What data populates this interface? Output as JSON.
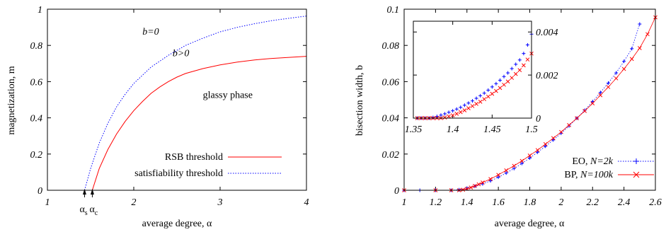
{
  "chart_data": [
    {
      "type": "line",
      "xlabel": "average degree, α",
      "ylabel": "magnetization, m",
      "xlim": [
        1,
        4
      ],
      "ylim": [
        0,
        1
      ],
      "xticks": [
        "1",
        "2",
        "3",
        "4"
      ],
      "yticks": [
        "0",
        "0.2",
        "0.4",
        "0.6",
        "0.8",
        "1"
      ],
      "grid": false,
      "legend": "bottom-right",
      "series": [
        {
          "name": "RSB threshold",
          "color": "#ff0000",
          "style": "solid",
          "x": [
            1.52,
            1.6,
            1.7,
            1.8,
            1.9,
            2.0,
            2.1,
            2.2,
            2.3,
            2.4,
            2.5,
            2.6,
            2.8,
            3.0,
            3.2,
            3.4,
            3.6,
            3.8,
            4.0
          ],
          "y": [
            0.0,
            0.12,
            0.225,
            0.31,
            0.38,
            0.44,
            0.49,
            0.535,
            0.57,
            0.6,
            0.625,
            0.645,
            0.672,
            0.692,
            0.708,
            0.72,
            0.728,
            0.734,
            0.74
          ]
        },
        {
          "name": "satisfiability threshold",
          "color": "#0000ff",
          "style": "dotted",
          "x": [
            1.43,
            1.5,
            1.6,
            1.7,
            1.8,
            1.9,
            2.0,
            2.2,
            2.4,
            2.6,
            2.8,
            3.0,
            3.2,
            3.4,
            3.6,
            3.8,
            4.0
          ],
          "y": [
            0.0,
            0.12,
            0.26,
            0.37,
            0.46,
            0.53,
            0.59,
            0.68,
            0.745,
            0.8,
            0.84,
            0.875,
            0.9,
            0.92,
            0.937,
            0.95,
            0.962
          ]
        }
      ],
      "annotations": [
        {
          "text": "b=0",
          "x": 2.1,
          "y": 0.86
        },
        {
          "text": "b>0",
          "x": 2.45,
          "y": 0.74
        },
        {
          "text": "glassy phase",
          "x": 2.8,
          "y": 0.51
        }
      ],
      "markers": [
        {
          "label_main": "α",
          "label_sub": "s",
          "x": 1.43
        },
        {
          "label_main": "α",
          "label_sub": "c",
          "x": 1.52
        }
      ]
    },
    {
      "type": "scatter",
      "xlabel": "average degree, α",
      "ylabel": "bisection width, b",
      "xlim": [
        1,
        2.6
      ],
      "ylim": [
        0,
        0.1
      ],
      "xticks": [
        "1",
        "1.2",
        "1.4",
        "1.6",
        "1.8",
        "2",
        "2.2",
        "2.4",
        "2.6"
      ],
      "yticks": [
        "0",
        "0.02",
        "0.04",
        "0.06",
        "0.08",
        "0.1"
      ],
      "grid": false,
      "legend": "bottom-right",
      "series": [
        {
          "name_prefix": "EO, ",
          "name_italic": "N=2k",
          "color": "#0000ff",
          "marker": "plus",
          "x": [
            1.0,
            1.1,
            1.2,
            1.3,
            1.35,
            1.4,
            1.45,
            1.5,
            1.55,
            1.6,
            1.65,
            1.7,
            1.75,
            1.8,
            1.85,
            1.9,
            1.95,
            2.0,
            2.05,
            2.1,
            2.15,
            2.2,
            2.25,
            2.3,
            2.35,
            2.4,
            2.45,
            2.5
          ],
          "y": [
            0.0,
            0.0,
            0.0,
            0.0,
            0.0003,
            0.0012,
            0.0022,
            0.0035,
            0.0052,
            0.0072,
            0.0095,
            0.012,
            0.0148,
            0.0178,
            0.021,
            0.0243,
            0.0278,
            0.0315,
            0.0355,
            0.0398,
            0.0442,
            0.049,
            0.054,
            0.0592,
            0.0648,
            0.0712,
            0.0782,
            0.0918
          ]
        },
        {
          "name_prefix": "BP, ",
          "name_italic": "N=100k",
          "color": "#ff0000",
          "marker": "x",
          "x": [
            1.0,
            1.2,
            1.3,
            1.35,
            1.375,
            1.4,
            1.425,
            1.45,
            1.475,
            1.5,
            1.55,
            1.6,
            1.65,
            1.7,
            1.75,
            1.8,
            1.85,
            1.9,
            1.95,
            2.0,
            2.05,
            2.1,
            2.15,
            2.2,
            2.25,
            2.3,
            2.35,
            2.4,
            2.45,
            2.5,
            2.55,
            2.6
          ],
          "y": [
            0.0,
            0.0,
            0.0,
            0.0,
            0.0003,
            0.0008,
            0.0015,
            0.0024,
            0.0033,
            0.0043,
            0.0062,
            0.0085,
            0.011,
            0.0135,
            0.0162,
            0.0192,
            0.0222,
            0.0255,
            0.0288,
            0.0322,
            0.036,
            0.0398,
            0.0438,
            0.048,
            0.0525,
            0.057,
            0.0618,
            0.067,
            0.0725,
            0.0785,
            0.0862,
            0.0955
          ]
        }
      ],
      "inset": {
        "xlim": [
          1.35,
          1.5
        ],
        "ylim": [
          0,
          0.0045
        ],
        "xticks": [
          "1.35",
          "1.4",
          "1.45",
          "1.5"
        ],
        "yticks": [
          "0",
          "0.002",
          "0.004"
        ],
        "series": [
          {
            "color": "#0000ff",
            "marker": "plus",
            "x": [
              1.355,
              1.36,
              1.365,
              1.37,
              1.375,
              1.38,
              1.385,
              1.39,
              1.395,
              1.4,
              1.405,
              1.41,
              1.415,
              1.42,
              1.425,
              1.43,
              1.435,
              1.44,
              1.445,
              1.45,
              1.455,
              1.46,
              1.465,
              1.47,
              1.475,
              1.48,
              1.485,
              1.49,
              1.495,
              1.5
            ],
            "y": [
              0.0,
              0.0,
              0.0,
              0.0,
              3e-05,
              8e-05,
              0.00014,
              0.0002,
              0.00027,
              0.00034,
              0.00042,
              0.0005,
              0.0006,
              0.0007,
              0.0008,
              0.00092,
              0.00104,
              0.00116,
              0.0013,
              0.00145,
              0.0016,
              0.00176,
              0.00193,
              0.0021,
              0.0023,
              0.0025,
              0.0027,
              0.003,
              0.0034,
              0.0039
            ]
          },
          {
            "color": "#ff0000",
            "marker": "x",
            "x": [
              1.355,
              1.36,
              1.365,
              1.37,
              1.375,
              1.38,
              1.385,
              1.39,
              1.395,
              1.4,
              1.405,
              1.41,
              1.415,
              1.42,
              1.425,
              1.43,
              1.435,
              1.44,
              1.445,
              1.45,
              1.455,
              1.46,
              1.465,
              1.47,
              1.475,
              1.48,
              1.485,
              1.49,
              1.495,
              1.5
            ],
            "y": [
              0.0,
              0.0,
              0.0,
              0.0,
              0.0,
              0.0,
              0.0,
              3e-05,
              8e-05,
              0.00013,
              0.0002,
              0.00028,
              0.00036,
              0.00046,
              0.00056,
              0.00066,
              0.00076,
              0.00088,
              0.001,
              0.00113,
              0.00126,
              0.0014,
              0.00155,
              0.0017,
              0.00187,
              0.00205,
              0.00223,
              0.00245,
              0.00272,
              0.003
            ]
          }
        ]
      }
    }
  ]
}
